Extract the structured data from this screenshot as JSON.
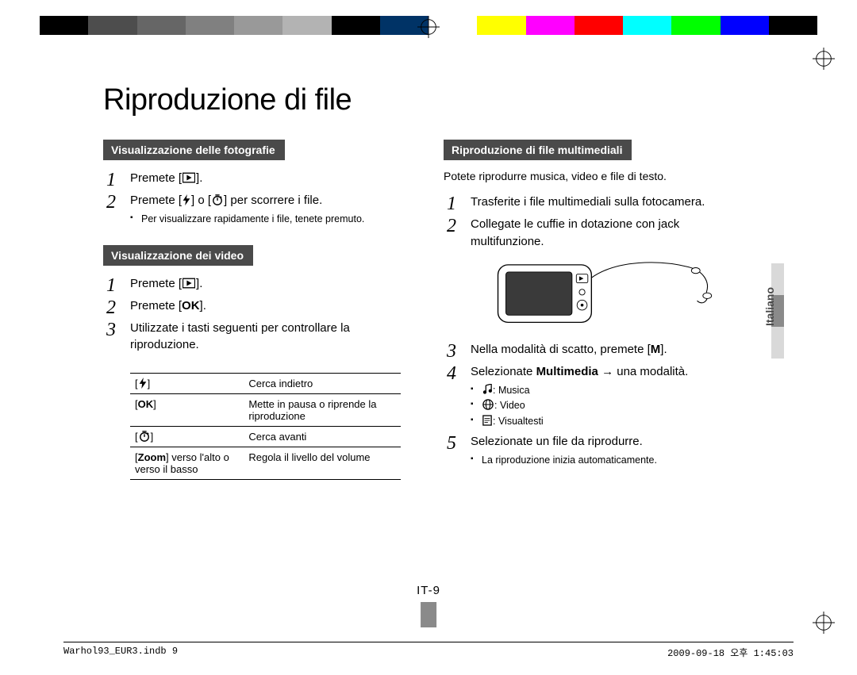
{
  "calib_colors": [
    "#000000",
    "#4d4d4d",
    "#666666",
    "#808080",
    "#999999",
    "#b3b3b3",
    "#000000",
    "#003366",
    "#ffffff",
    "#ffff00",
    "#ff00ff",
    "#ff0000",
    "#00ffff",
    "#00ff00",
    "#0000ff",
    "#000000"
  ],
  "title": "Riproduzione di file",
  "side_lang": "Italiano",
  "page_number": "IT-9",
  "footer_left": "Warhol93_EUR3.indb   9",
  "footer_right": "2009-09-18   오후 1:45:03",
  "sec_photos": {
    "head": "Visualizzazione delle fotografie",
    "steps": [
      {
        "txt": "Premete [",
        "icon": "play",
        "suffix": "]."
      },
      {
        "txt": "Premete [",
        "icon": "flash",
        "mid": "] o [",
        "icon2": "timer",
        "suffix": "] per scorrere i file.",
        "sub": [
          "Per visualizzare rapidamente i file, tenete premuto."
        ]
      }
    ]
  },
  "sec_videos": {
    "head": "Visualizzazione dei video",
    "steps": [
      {
        "txt": "Premete [",
        "icon": "play",
        "suffix": "]."
      },
      {
        "txt": "Premete [",
        "bold": "OK",
        "suffix": "]."
      },
      {
        "txt": "Utilizzate i tasti seguenti per controllare la riproduzione."
      }
    ],
    "table": [
      {
        "k_icon": "flash",
        "v": "Cerca indietro"
      },
      {
        "k_bold": "OK",
        "v": "Mette in pausa o riprende la riproduzione"
      },
      {
        "k_icon": "timer",
        "v": "Cerca avanti"
      },
      {
        "k_html": "[<b>Zoom</b>] verso l'alto o verso il basso",
        "v": "Regola il livello del volume"
      }
    ]
  },
  "sec_mm": {
    "head": "Riproduzione di file multimediali",
    "intro": "Potete riprodurre musica, video e file di testo.",
    "steps": [
      {
        "txt": "Trasferite i file multimediali sulla fotocamera."
      },
      {
        "txt": "Collegate le cuffie in dotazione con jack multifunzione."
      },
      {
        "figure": true
      },
      {
        "txt": "Nella modalità di scatto, premete [",
        "bold": "M",
        "suffix": "]."
      },
      {
        "txt": "Selezionate ",
        "bold": "Multimedia",
        "suffix": " → una modalità.",
        "sub_icons": [
          {
            "icon": "music",
            "label": ": Musica"
          },
          {
            "icon": "globe",
            "label": ": Video"
          },
          {
            "icon": "text",
            "label": ": Visualtesti"
          }
        ]
      },
      {
        "txt": "Selezionate un file da riprodurre.",
        "sub": [
          "La riproduzione inizia automaticamente."
        ]
      }
    ]
  }
}
